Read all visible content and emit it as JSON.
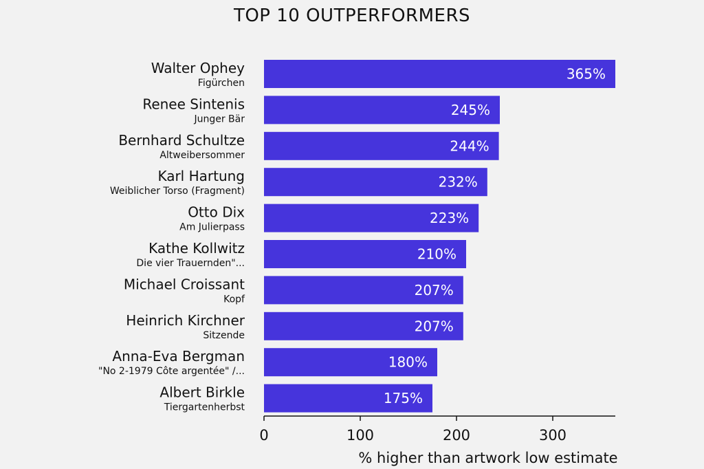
{
  "chart_data": {
    "type": "bar",
    "orientation": "horizontal",
    "title": "TOP 10 OUTPERFORMERS",
    "xlabel": "% higher than artwork low estimate",
    "ylabel": "",
    "xlim": [
      0,
      365
    ],
    "xticks": [
      0,
      100,
      200,
      300
    ],
    "bar_color": "#4634dc",
    "label_color": "#ffffff",
    "categories": [
      {
        "artist": "Walter Ophey",
        "artwork": "Figürchen"
      },
      {
        "artist": "Renee Sintenis",
        "artwork": "Junger Bär"
      },
      {
        "artist": "Bernhard Schultze",
        "artwork": "Altweibersommer"
      },
      {
        "artist": "Karl Hartung",
        "artwork": "Weiblicher Torso (Fragment)"
      },
      {
        "artist": "Otto Dix",
        "artwork": "Am Julierpass"
      },
      {
        "artist": "Kathe Kollwitz",
        "artwork": "Die vier Trauernden\"..."
      },
      {
        "artist": "Michael Croissant",
        "artwork": "Kopf"
      },
      {
        "artist": "Heinrich Kirchner",
        "artwork": "Sitzende"
      },
      {
        "artist": "Anna-Eva Bergman",
        "artwork": "\"No 2-1979 Côte argentée\" /..."
      },
      {
        "artist": "Albert Birkle",
        "artwork": "Tiergartenherbst"
      }
    ],
    "values": [
      365,
      245,
      244,
      232,
      223,
      210,
      207,
      207,
      180,
      175
    ],
    "value_labels": [
      "365%",
      "245%",
      "244%",
      "232%",
      "223%",
      "210%",
      "207%",
      "207%",
      "180%",
      "175%"
    ],
    "grid": false,
    "legend": "none"
  }
}
